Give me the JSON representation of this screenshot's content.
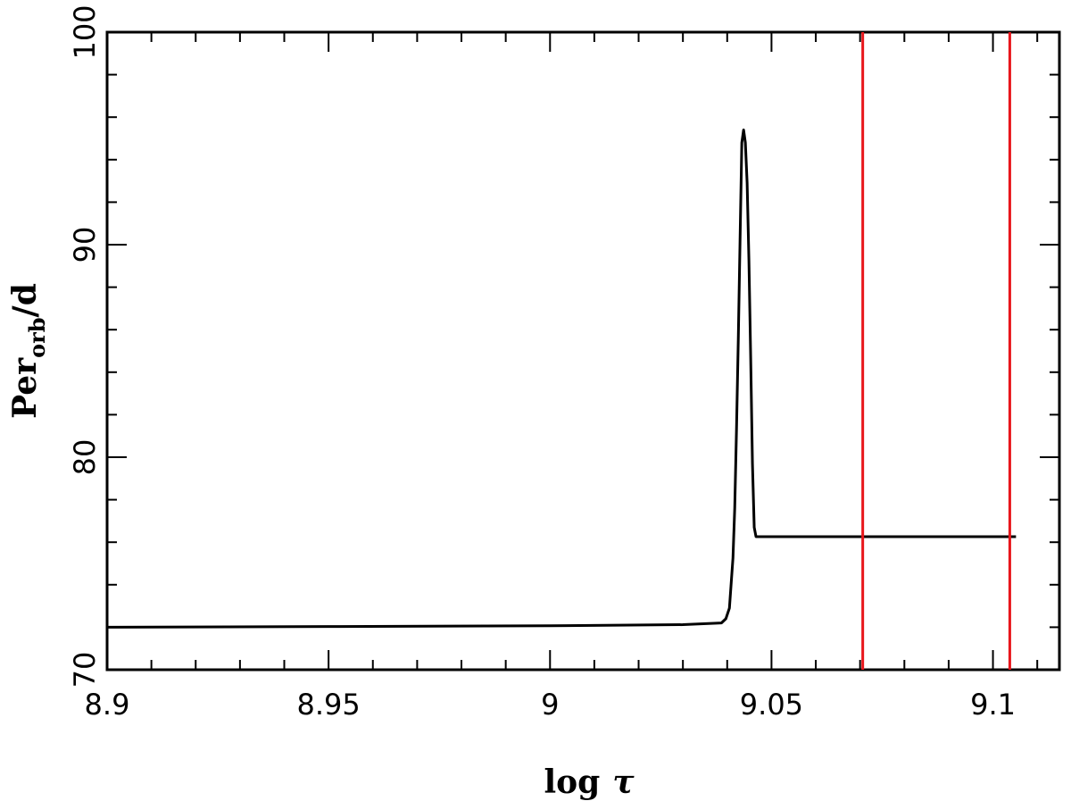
{
  "chart_data": {
    "type": "line",
    "xlabel": [
      "log",
      "τ"
    ],
    "ylabel": [
      "Per",
      "orb",
      "/d"
    ],
    "xlim": [
      8.9,
      9.115
    ],
    "ylim": [
      70,
      100
    ],
    "xticks": [
      8.9,
      8.95,
      9,
      9.05,
      9.1
    ],
    "yticks": [
      70,
      80,
      90,
      100
    ],
    "xminorticks": [
      8.91,
      8.92,
      8.93,
      8.94,
      8.96,
      8.97,
      8.98,
      8.99,
      9.01,
      9.02,
      9.03,
      9.04,
      9.06,
      9.07,
      9.08,
      9.09,
      9.11
    ],
    "yminorticks": [
      72,
      74,
      76,
      78,
      82,
      84,
      86,
      88,
      92,
      94,
      96,
      98
    ],
    "series": [
      {
        "color": "#000000",
        "x": [
          8.9,
          8.95,
          9.0,
          9.03,
          9.0387,
          9.0397,
          9.0405,
          9.0413,
          9.0417,
          9.0421,
          9.0425,
          9.0429,
          9.0433,
          9.0437,
          9.0441,
          9.0445,
          9.0449,
          9.0453,
          9.0457,
          9.0461,
          9.0465,
          9.0752,
          9.1052
        ],
        "values": [
          72.0,
          72.03,
          72.07,
          72.12,
          72.2,
          72.4,
          72.9,
          75.25,
          77.6,
          81.3,
          85.5,
          90.2,
          94.8,
          95.4,
          94.8,
          92.9,
          89.3,
          84.7,
          79.7,
          76.7,
          76.26,
          76.26,
          76.26
        ]
      }
    ],
    "vlines": {
      "color": "#e8161b",
      "values": [
        9.0706,
        9.1038
      ]
    }
  }
}
